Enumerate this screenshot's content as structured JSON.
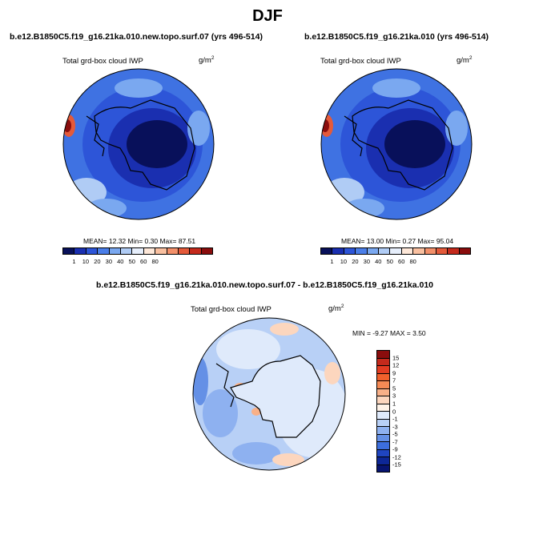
{
  "figure": {
    "title": "DJF",
    "panel1": {
      "subtitle": "b.e12.B1850C5.f19_g16.21ka.010.new.topo.surf.07 (yrs 496-514)",
      "variable": "Total grd-box cloud IWP",
      "units_base": "g/m",
      "units_exp": "2",
      "stats": "MEAN=  12.32  Min=   0.30  Max=  87.51"
    },
    "panel2": {
      "subtitle": "b.e12.B1850C5.f19_g16.21ka.010 (yrs 496-514)",
      "variable": "Total grd-box cloud IWP",
      "units_base": "g/m",
      "units_exp": "2",
      "stats": "MEAN=  13.00  Min=   0.27  Max=  95.04"
    },
    "panel3": {
      "subtitle": "b.e12.B1850C5.f19_g16.21ka.010.new.topo.surf.07 - b.e12.B1850C5.f19_g16.21ka.010",
      "variable": "Total grd-box cloud IWP",
      "units_base": "g/m",
      "units_exp": "2",
      "stats": "MIN =  -9.27 MAX =   3.50"
    }
  },
  "colorbar_abs": {
    "ticks": [
      "1",
      "10",
      "20",
      "30",
      "40",
      "50",
      "60",
      "80"
    ],
    "colors": [
      "#08105a",
      "#1a2fb0",
      "#2d55d8",
      "#4a7ee8",
      "#7aa8f0",
      "#b0ccf5",
      "#e6eefb",
      "#fde7d8",
      "#f9c0a0",
      "#f3906a",
      "#e45a3a",
      "#c42a1c",
      "#8a0d0d"
    ]
  },
  "colorbar_diff": {
    "ticks": [
      "15",
      "12",
      "9",
      "7",
      "5",
      "3",
      "1",
      "0",
      "-1",
      "-3",
      "-5",
      "-7",
      "-9",
      "-12",
      "-15"
    ],
    "colors": [
      "#8a0d0d",
      "#c42a1c",
      "#e23c22",
      "#f0602c",
      "#f58a55",
      "#f8b088",
      "#fcd6be",
      "#fff3e8",
      "#dfeafb",
      "#b8d0f6",
      "#8eb1f0",
      "#6490e6",
      "#3c6edc",
      "#1f45c0",
      "#0d2796",
      "#071470"
    ]
  }
}
